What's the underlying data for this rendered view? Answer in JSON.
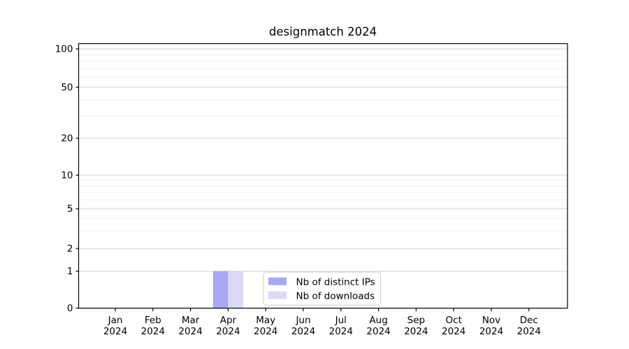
{
  "title": "designmatch 2024",
  "chart_data": {
    "type": "bar",
    "title": "designmatch 2024",
    "x": {
      "categories": [
        "Jan",
        "Feb",
        "Mar",
        "Apr",
        "May",
        "Jun",
        "Jul",
        "Aug",
        "Sep",
        "Oct",
        "Nov",
        "Dec"
      ],
      "year_label": "2024"
    },
    "y": {
      "scale": "symlog",
      "major_ticks": [
        0,
        1,
        2,
        5,
        10,
        20,
        50,
        100
      ],
      "minor_ticks": [
        3,
        4,
        6,
        7,
        8,
        9,
        30,
        40,
        60,
        70,
        80,
        90
      ],
      "ylim": [
        0,
        110
      ],
      "grid": "both"
    },
    "series": [
      {
        "name": "Nb of distinct IPs",
        "color": "#a9a9f1",
        "values": [
          0,
          0,
          0,
          1,
          0,
          0,
          0,
          0,
          0,
          0,
          0,
          0
        ]
      },
      {
        "name": "Nb of downloads",
        "color": "#dadaf8",
        "values": [
          0,
          0,
          0,
          1,
          0,
          0,
          0,
          0,
          0,
          0,
          0,
          0
        ]
      }
    ],
    "legend": {
      "position": "lower center",
      "entries": [
        "Nb of distinct IPs",
        "Nb of downloads"
      ]
    },
    "colors": {
      "axis": "#000000",
      "major_grid": "#d4d4d4",
      "minor_grid": "#efefef",
      "legend_border": "#cccccc",
      "background": "#ffffff"
    }
  }
}
